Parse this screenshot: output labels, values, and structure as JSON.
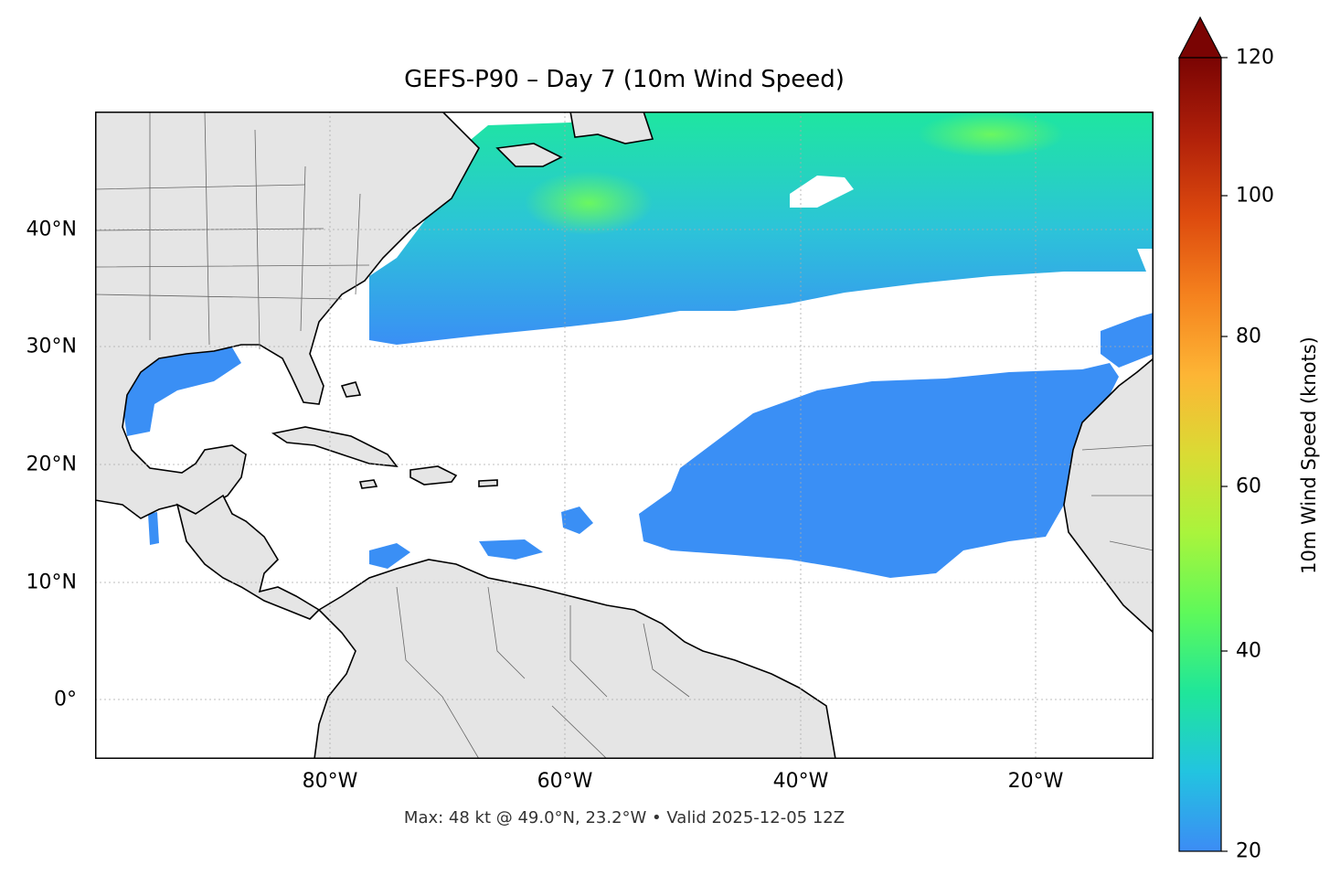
{
  "title": "GEFS-P90 – Day 7 (10m Wind Speed)",
  "footnote": "Max: 48 kt @ 49.0°N, 23.2°W • Valid 2025-12-05 12Z",
  "map": {
    "extent": {
      "lon": [
        -100,
        -10
      ],
      "lat": [
        -5,
        50
      ]
    },
    "x_ticks": [
      "80°W",
      "60°W",
      "40°W",
      "20°W"
    ],
    "y_ticks": [
      "0°",
      "10°N",
      "20°N",
      "30°N",
      "40°N"
    ],
    "gridlines": true,
    "land_color": "#e5e5e5",
    "ocean_color": "#ffffff"
  },
  "colorbar": {
    "label": "10m Wind Speed (knots)",
    "ticks": [
      "20",
      "40",
      "60",
      "80",
      "100",
      "120"
    ],
    "range": [
      20,
      120
    ],
    "extend": "max",
    "colormap": "turbo"
  },
  "wind_field": {
    "threshold_kt": 20,
    "max_kt": 48,
    "max_location": {
      "lat": 49.0,
      "lon": -23.2
    }
  }
}
